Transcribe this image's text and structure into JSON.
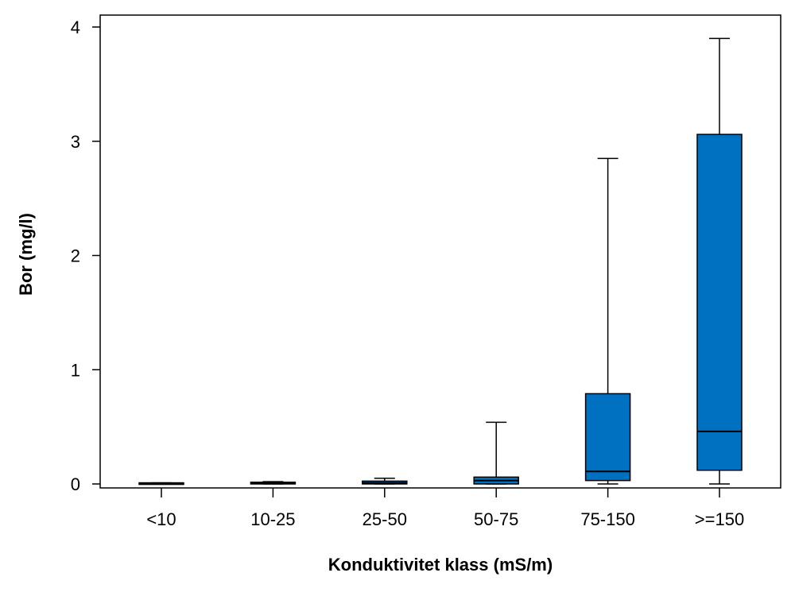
{
  "chart_data": {
    "type": "box",
    "title": "",
    "xlabel": "Konduktivitet klass (mS/m)",
    "ylabel": "Bor (mg/l)",
    "ylim": [
      0,
      4
    ],
    "yticks": [
      "0",
      "1",
      "2",
      "3",
      "4"
    ],
    "grid": false,
    "colors": {
      "box_fill": "#0070c0",
      "stroke": "#000000"
    },
    "categories": [
      "<10",
      "10-25",
      "25-50",
      "50-75",
      "75-150",
      ">=150"
    ],
    "boxes": [
      {
        "category": "<10",
        "min": 0.0,
        "q1": 0.0,
        "median": 0.005,
        "q3": 0.01,
        "max": 0.01
      },
      {
        "category": "10-25",
        "min": 0.0,
        "q1": 0.0,
        "median": 0.005,
        "q3": 0.015,
        "max": 0.02
      },
      {
        "category": "25-50",
        "min": 0.0,
        "q1": 0.0,
        "median": 0.01,
        "q3": 0.025,
        "max": 0.05
      },
      {
        "category": "50-75",
        "min": 0.0,
        "q1": 0.0,
        "median": 0.03,
        "q3": 0.06,
        "max": 0.54
      },
      {
        "category": "75-150",
        "min": 0.0,
        "q1": 0.03,
        "median": 0.11,
        "q3": 0.79,
        "max": 2.85
      },
      {
        "category": ">=150",
        "min": 0.0,
        "q1": 0.12,
        "median": 0.46,
        "q3": 3.06,
        "max": 3.9
      }
    ]
  }
}
